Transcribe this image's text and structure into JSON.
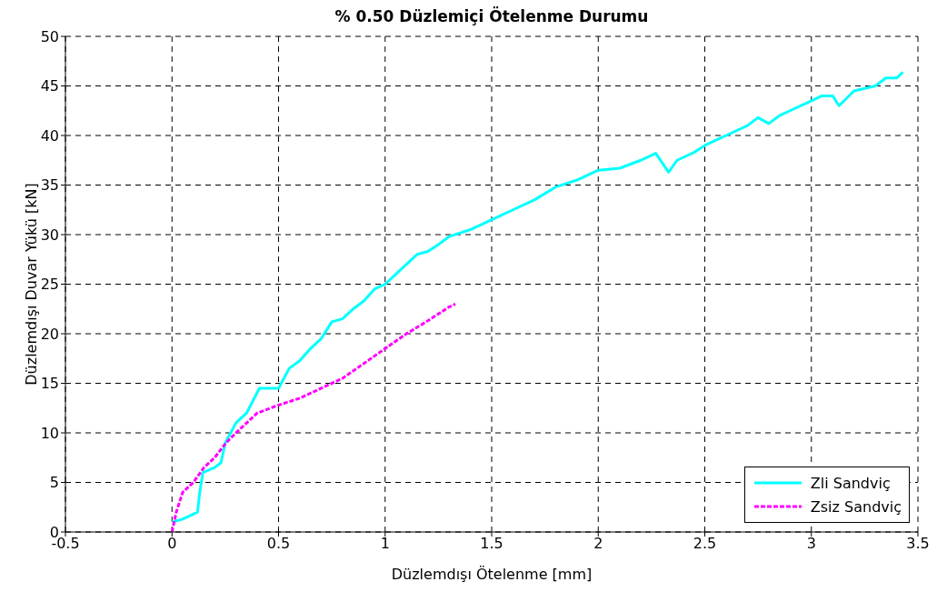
{
  "chart_data": {
    "type": "line",
    "title": "% 0.50 Düzlemiçi Ötelenme Durumu",
    "xlabel": "Düzlemdışı Ötelenme [mm]",
    "ylabel": "Düzlemdışı Duvar Yükü [kN]",
    "xlim": [
      -0.5,
      3.5
    ],
    "xticks": [
      -0.5,
      0,
      0.5,
      1,
      1.5,
      2,
      2.5,
      3,
      3.5
    ],
    "ylim": [
      0,
      50
    ],
    "yticks": [
      0,
      5,
      10,
      15,
      20,
      25,
      30,
      35,
      40,
      45,
      50
    ],
    "grid": true,
    "legend": "bottom right",
    "marker": "none",
    "series": [
      {
        "name": "Zli Sandviç",
        "color": "#00ffff",
        "line_style": "solid",
        "x": [
          0,
          0.05,
          0.1,
          0.12,
          0.13,
          0.145,
          0.2,
          0.23,
          0.25,
          0.3,
          0.35,
          0.41,
          0.47,
          0.5,
          0.55,
          0.6,
          0.65,
          0.7,
          0.75,
          0.8,
          0.85,
          0.9,
          0.95,
          1.0,
          1.05,
          1.1,
          1.15,
          1.2,
          1.25,
          1.3,
          1.4,
          1.5,
          1.6,
          1.7,
          1.8,
          1.9,
          2.0,
          2.1,
          2.2,
          2.27,
          2.33,
          2.37,
          2.45,
          2.5,
          2.55,
          2.6,
          2.7,
          2.75,
          2.8,
          2.85,
          2.9,
          3.0,
          3.05,
          3.1,
          3.13,
          3.2,
          3.3,
          3.35,
          3.4,
          3.43
        ],
        "values": [
          1,
          1.3,
          1.8,
          2,
          4,
          6,
          6.5,
          7,
          9,
          11,
          12,
          14.5,
          14.5,
          14.5,
          16.5,
          17.3,
          18.5,
          19.5,
          21.2,
          21.5,
          22.5,
          23.3,
          24.5,
          25,
          26,
          27,
          28,
          28.3,
          29,
          29.8,
          30.5,
          31.5,
          32.5,
          33.5,
          34.8,
          35.5,
          36.5,
          36.7,
          37.5,
          38.2,
          36.3,
          37.5,
          38.3,
          39,
          39.5,
          40,
          41,
          41.8,
          41.2,
          42,
          42.5,
          43.5,
          44,
          44,
          43,
          44.5,
          45,
          45.8,
          45.8,
          46.4
        ]
      },
      {
        "name": "Zsiz Sandviç",
        "color": "#ff00ff",
        "line_style": "dashed",
        "x": [
          0,
          0.02,
          0.05,
          0.1,
          0.15,
          0.2,
          0.25,
          0.3,
          0.35,
          0.4,
          0.5,
          0.6,
          0.7,
          0.8,
          0.9,
          1.0,
          1.1,
          1.2,
          1.3,
          1.33
        ],
        "values": [
          0,
          2,
          4,
          5,
          6.5,
          7.5,
          8.9,
          10,
          11,
          12,
          12.8,
          13.5,
          14.5,
          15.5,
          17,
          18.5,
          20,
          21.3,
          22.7,
          23
        ]
      }
    ]
  }
}
